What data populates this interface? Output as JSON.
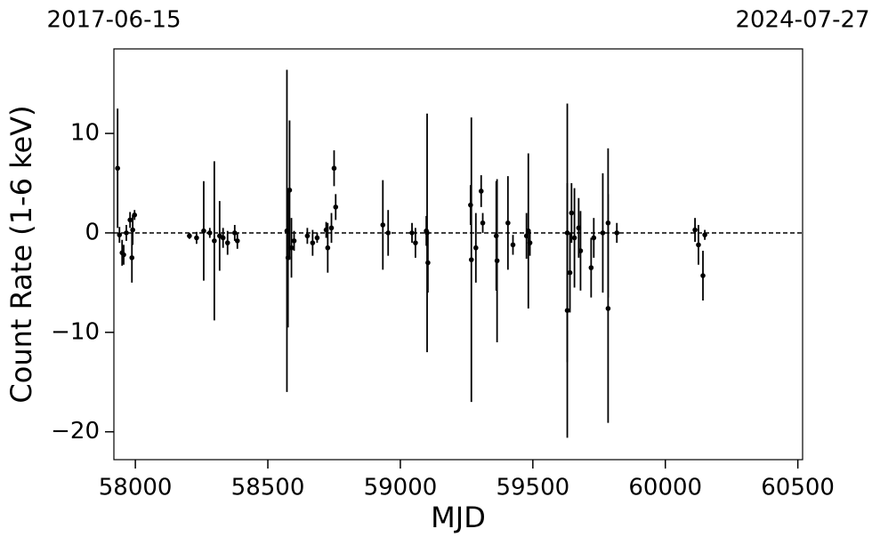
{
  "chart_data": {
    "type": "errorbar",
    "xlabel": "MJD",
    "ylabel": "Count Rate (1-6 keV)",
    "xlim": [
      57919,
      60518
    ],
    "ylim": [
      -22.8,
      18.5
    ],
    "xticks": [
      58000,
      58500,
      59000,
      59500,
      60000,
      60500
    ],
    "yticks": [
      {
        "value": -20,
        "label": "−20"
      },
      {
        "value": -10,
        "label": "−10"
      },
      0,
      10
    ],
    "x2ticks": [
      {
        "value": 57919,
        "label": "2017-06-15"
      },
      {
        "value": 60518,
        "label": "2024-07-27"
      }
    ],
    "hline": 0,
    "color": "#000000",
    "series": [
      {
        "name": "Count Rate",
        "color": "#000000",
        "x": [
          57933,
          57940,
          57950,
          57956,
          57966,
          57980,
          57987,
          57990,
          57997,
          58204,
          58231,
          58258,
          58281,
          58298,
          58318,
          58331,
          58348,
          58375,
          58385,
          58572,
          58576,
          58582,
          58589,
          58599,
          58649,
          58669,
          58686,
          58720,
          58726,
          58740,
          58750,
          58756,
          58934,
          58954,
          59044,
          59057,
          59098,
          59101,
          59104,
          59265,
          59268,
          59285,
          59305,
          59311,
          59362,
          59365,
          59406,
          59425,
          59476,
          59483,
          59489,
          59630,
          59630,
          59640,
          59646,
          59657,
          59673,
          59680,
          59720,
          59730,
          59764,
          59784,
          59784,
          59817,
          60112,
          60125,
          60142,
          60149
        ],
        "values": [
          6.5,
          -0.2,
          -2,
          -2.2,
          0,
          1.3,
          -2.5,
          0.3,
          1.8,
          -0.3,
          -0.5,
          0.2,
          0,
          -0.8,
          -0.3,
          -0.5,
          -1,
          0,
          -0.8,
          0.2,
          -2.5,
          4.3,
          -1.5,
          -0.8,
          -0.3,
          -1,
          -0.5,
          0.3,
          -1.5,
          0.5,
          6.5,
          2.6,
          0.8,
          0,
          0,
          -1,
          0.2,
          0,
          -3,
          2.8,
          -2.7,
          -1.5,
          4.2,
          1,
          -0.3,
          -2.8,
          1,
          -1.2,
          -0.3,
          0.2,
          -1,
          -7.8,
          0,
          -4,
          2,
          -0.5,
          0.5,
          -1.8,
          -3.5,
          -0.5,
          0,
          -7.6,
          1,
          0,
          0.3,
          -1.2,
          -4.3,
          -0.2
        ],
        "errors": [
          6,
          0.8,
          1.3,
          1,
          0.8,
          0.8,
          2.5,
          1.5,
          0.5,
          0.3,
          0.6,
          5,
          0.5,
          8,
          3.5,
          1,
          1.2,
          0.8,
          0.8,
          16.2,
          7,
          7,
          3,
          1,
          0.8,
          1.3,
          0.5,
          0.8,
          2.5,
          1.5,
          1.8,
          1.3,
          4.5,
          2.3,
          1,
          1.5,
          1.5,
          12,
          3,
          2,
          14.3,
          3.5,
          1.6,
          1,
          5.5,
          8.2,
          4.7,
          1,
          2.3,
          7.8,
          1.3,
          12.8,
          13,
          4,
          3,
          5,
          3,
          4,
          3,
          2,
          6,
          11.5,
          7.5,
          1,
          1.2,
          2,
          2.5,
          0.5
        ]
      }
    ]
  }
}
